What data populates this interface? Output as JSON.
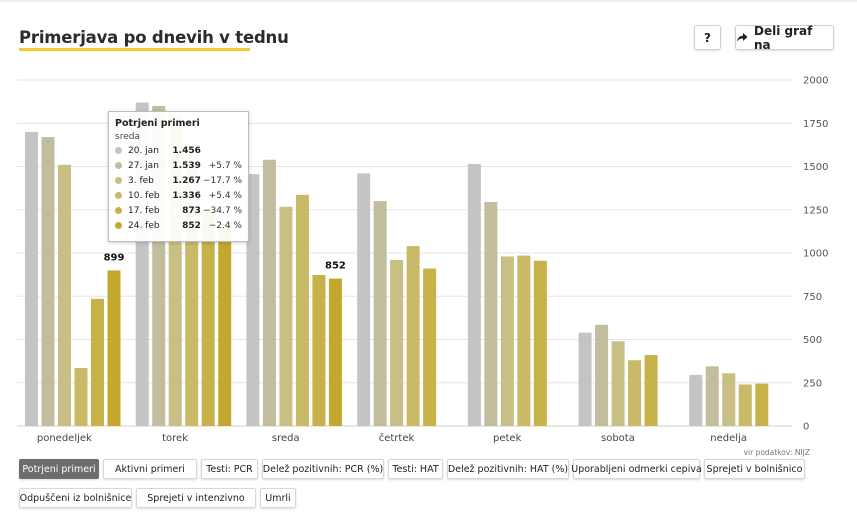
{
  "header": {
    "title": "Primerjava po dnevih v tednu",
    "help_label": "?",
    "share_label": "Deli graf na"
  },
  "source": "vir podatkov: NIJZ",
  "tooltip": {
    "title": "Potrjeni primeri",
    "day": "sreda",
    "rows": [
      {
        "date": "20. jan",
        "value": "1.456",
        "change": ""
      },
      {
        "date": "27. jan",
        "value": "1.539",
        "change": "+5.7 %"
      },
      {
        "date": "3. feb",
        "value": "1.267",
        "change": "−17.7 %"
      },
      {
        "date": "10. feb",
        "value": "1.336",
        "change": "+5.4 %"
      },
      {
        "date": "17. feb",
        "value": "873",
        "change": "−34.7 %"
      },
      {
        "date": "24. feb",
        "value": "852",
        "change": "−2.4 %"
      }
    ]
  },
  "tabs": {
    "items": [
      {
        "label": "Potrjeni primeri",
        "active": true
      },
      {
        "label": "Aktivni primeri",
        "active": false
      },
      {
        "label": "Testi: PCR",
        "active": false
      },
      {
        "label": "Delež pozitivnih: PCR (%)",
        "active": false
      },
      {
        "label": "Testi: HAT",
        "active": false
      },
      {
        "label": "Delež pozitivnih: HAT (%)",
        "active": false
      },
      {
        "label": "Uporabljeni odmerki cepiva",
        "active": false
      },
      {
        "label": "Sprejeti v bolnišnico",
        "active": false
      },
      {
        "label": "Odpuščeni iz bolnišnice",
        "active": false
      },
      {
        "label": "Sprejeti v intenzivno",
        "active": false
      },
      {
        "label": "Umrli",
        "active": false
      }
    ]
  },
  "colors": {
    "series": [
      "#c4c4c4",
      "#c2bd9c",
      "#c9bf84",
      "#c9ba68",
      "#c6b248",
      "#c3a82d"
    ],
    "grid": "#e5e5e5",
    "title_underline": "#f1cb32"
  },
  "chart_data": {
    "type": "bar",
    "categories": [
      "ponedeljek",
      "torek",
      "sreda",
      "četrtek",
      "petek",
      "sobota",
      "nedelja"
    ],
    "series": [
      {
        "values": [
          1700,
          1870,
          1456,
          1460,
          1515,
          540,
          295
        ]
      },
      {
        "values": [
          1670,
          1850,
          1539,
          1300,
          1295,
          585,
          345
        ]
      },
      {
        "values": [
          1510,
          1800,
          1267,
          960,
          980,
          490,
          305
        ]
      },
      {
        "values": [
          335,
          1600,
          1336,
          1040,
          985,
          380,
          240
        ]
      },
      {
        "values": [
          735,
          1250,
          873,
          910,
          955,
          410,
          245
        ]
      },
      {
        "values": [
          899,
          1150,
          852,
          null,
          null,
          null,
          null
        ]
      }
    ],
    "data_labels": [
      {
        "category": "ponedeljek",
        "value": "899"
      },
      {
        "category": "sreda",
        "value": "852"
      }
    ],
    "yticks": [
      "0",
      "250",
      "500",
      "750",
      "1000",
      "1250",
      "1500",
      "1750",
      "2000"
    ],
    "ylim": [
      0,
      2000
    ],
    "grid": true,
    "axis_position": "right"
  }
}
